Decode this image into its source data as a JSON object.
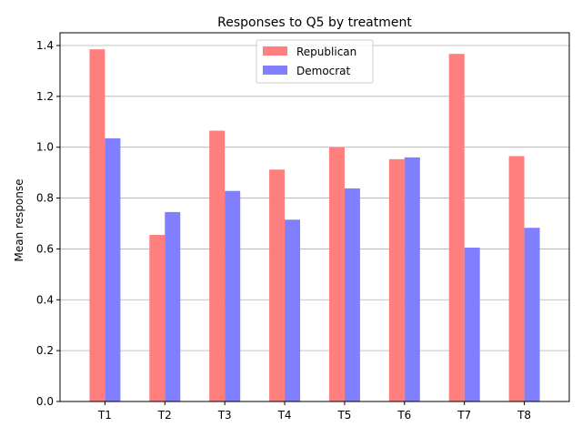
{
  "chart_data": {
    "type": "bar",
    "title": "Responses to Q5 by treatment",
    "xlabel": "",
    "ylabel": "Mean response",
    "categories": [
      "T1",
      "T2",
      "T3",
      "T4",
      "T5",
      "T6",
      "T7",
      "T8"
    ],
    "series": [
      {
        "name": "Republican",
        "color": "#ff7f7f",
        "values": [
          1.385,
          0.655,
          1.065,
          0.912,
          1.0,
          0.953,
          1.367,
          0.965
        ]
      },
      {
        "name": "Democrat",
        "color": "#7f7fff",
        "values": [
          1.035,
          0.745,
          0.828,
          0.715,
          0.838,
          0.96,
          0.605,
          0.683
        ]
      }
    ],
    "ylim": [
      0,
      1.45
    ],
    "yticks": [
      "0.0",
      "0.2",
      "0.4",
      "0.6",
      "0.8",
      "1.0",
      "1.2",
      "1.4"
    ],
    "grid": "y",
    "legend": "upper center"
  }
}
